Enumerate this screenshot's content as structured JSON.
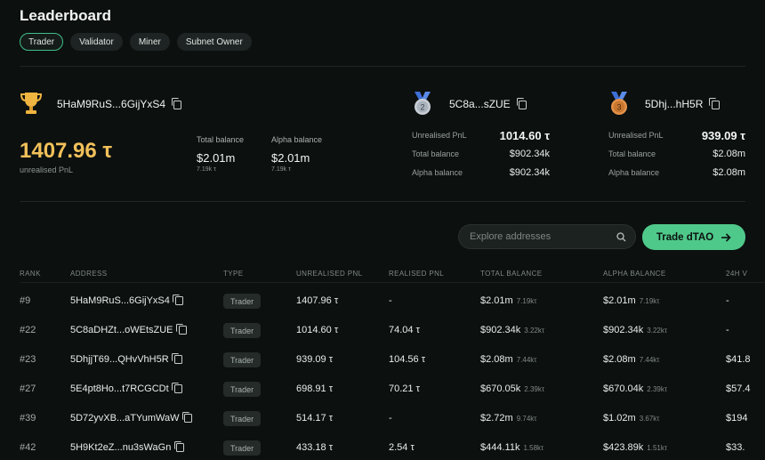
{
  "page": {
    "title": "Leaderboard"
  },
  "tabs": [
    {
      "label": "Trader",
      "active": true
    },
    {
      "label": "Validator"
    },
    {
      "label": "Miner"
    },
    {
      "label": "Subnet Owner"
    }
  ],
  "podium": {
    "first": {
      "icon": "trophy-icon",
      "address": "5HaM9RuS...6GijYxS4",
      "pnl": "1407.96 τ",
      "pnl_label": "unrealised PnL",
      "total_balance_label": "Total balance",
      "total_balance": "$2.01m",
      "total_balance_sub": "7.19k τ",
      "alpha_balance_label": "Alpha balance",
      "alpha_balance": "$2.01m",
      "alpha_balance_sub": "7.19k τ"
    },
    "second": {
      "icon": "silver-medal-icon",
      "rank_badge": "2",
      "address": "5C8a...sZUE",
      "unrealised_label": "Unrealised PnL",
      "unrealised": "1014.60 τ",
      "total_label": "Total balance",
      "total": "$902.34k",
      "alpha_label": "Alpha balance",
      "alpha": "$902.34k"
    },
    "third": {
      "icon": "bronze-medal-icon",
      "rank_badge": "3",
      "address": "5Dhj...hH5R",
      "unrealised_label": "Unrealised PnL",
      "unrealised": "939.09 τ",
      "total_label": "Total balance",
      "total": "$2.08m",
      "alpha_label": "Alpha balance",
      "alpha": "$2.08m"
    }
  },
  "search": {
    "placeholder": "Explore addresses",
    "icon": "search-icon"
  },
  "trade_button": {
    "label": "Trade dTAO",
    "icon": "arrow-right-icon"
  },
  "table": {
    "headers": [
      "RANK",
      "ADDRESS",
      "TYPE",
      "UNREALISED PNL",
      "REALISED PNL",
      "TOTAL BALANCE",
      "ALPHA BALANCE",
      "24H V"
    ],
    "rows": [
      {
        "rank": "#9",
        "address": "5HaM9RuS...6GijYxS4",
        "type": "Trader",
        "unrealised": "1407.96 τ",
        "realised": "-",
        "total": "$2.01m",
        "total_sub": "7.19kτ",
        "alpha": "$2.01m",
        "alpha_sub": "7.19kτ",
        "vol": "-"
      },
      {
        "rank": "#22",
        "address": "5C8aDHZt...oWEtsZUE",
        "type": "Trader",
        "unrealised": "1014.60 τ",
        "realised": "74.04 τ",
        "total": "$902.34k",
        "total_sub": "3.22kτ",
        "alpha": "$902.34k",
        "alpha_sub": "3.22kτ",
        "vol": "-"
      },
      {
        "rank": "#23",
        "address": "5DhjjT69...QHvVhH5R",
        "type": "Trader",
        "unrealised": "939.09 τ",
        "realised": "104.56 τ",
        "total": "$2.08m",
        "total_sub": "7.44kτ",
        "alpha": "$2.08m",
        "alpha_sub": "7.44kτ",
        "vol": "$41.8"
      },
      {
        "rank": "#27",
        "address": "5E4pt8Ho...t7RCGCDt",
        "type": "Trader",
        "unrealised": "698.91 τ",
        "realised": "70.21 τ",
        "total": "$670.05k",
        "total_sub": "2.39kτ",
        "alpha": "$670.04k",
        "alpha_sub": "2.39kτ",
        "vol": "$57.4"
      },
      {
        "rank": "#39",
        "address": "5D72yvXB...aTYumWaW",
        "type": "Trader",
        "unrealised": "514.17 τ",
        "realised": "-",
        "total": "$2.72m",
        "total_sub": "9.74kτ",
        "alpha": "$1.02m",
        "alpha_sub": "3.67kτ",
        "vol": "$194"
      },
      {
        "rank": "#42",
        "address": "5H9Kt2eZ...nu3sWaGn",
        "type": "Trader",
        "unrealised": "433.18 τ",
        "realised": "2.54 τ",
        "total": "$444.11k",
        "total_sub": "1.58kτ",
        "alpha": "$423.89k",
        "alpha_sub": "1.51kτ",
        "vol": "$33."
      }
    ]
  },
  "colors": {
    "accent": "#4fc98a",
    "gold": "#f2c15a",
    "background": "#0c100f"
  }
}
